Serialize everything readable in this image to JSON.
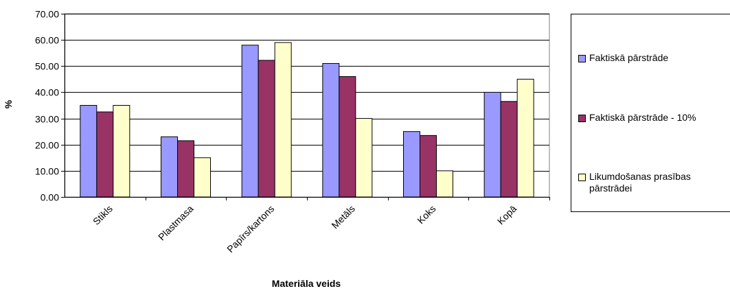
{
  "chart_data": {
    "type": "bar",
    "categories": [
      "Stikls",
      "Plastmasa",
      "Papīrs/kartons",
      "Metāls",
      "Koks",
      "Kopā"
    ],
    "series": [
      {
        "name": "Faktiskā pārstrāde",
        "values": [
          35,
          23,
          58,
          51,
          25,
          40
        ],
        "color": "#9999ff"
      },
      {
        "name": "Faktiskā pārstrāde - 10%",
        "values": [
          32.5,
          21.5,
          52.2,
          46,
          23.5,
          36.5
        ],
        "color": "#993366"
      },
      {
        "name": "Likumdošanas prasības pārstrādei",
        "values": [
          35,
          15,
          59,
          30,
          10,
          45
        ],
        "color": "#ffffcc"
      }
    ],
    "xlabel": "Materiāla veids",
    "ylabel": "%",
    "ylim": [
      0,
      70
    ],
    "yticks": [
      "0.00",
      "10.00",
      "20.00",
      "30.00",
      "40.00",
      "50.00",
      "60.00",
      "70.00"
    ],
    "grid": true,
    "legend_position": "right"
  }
}
